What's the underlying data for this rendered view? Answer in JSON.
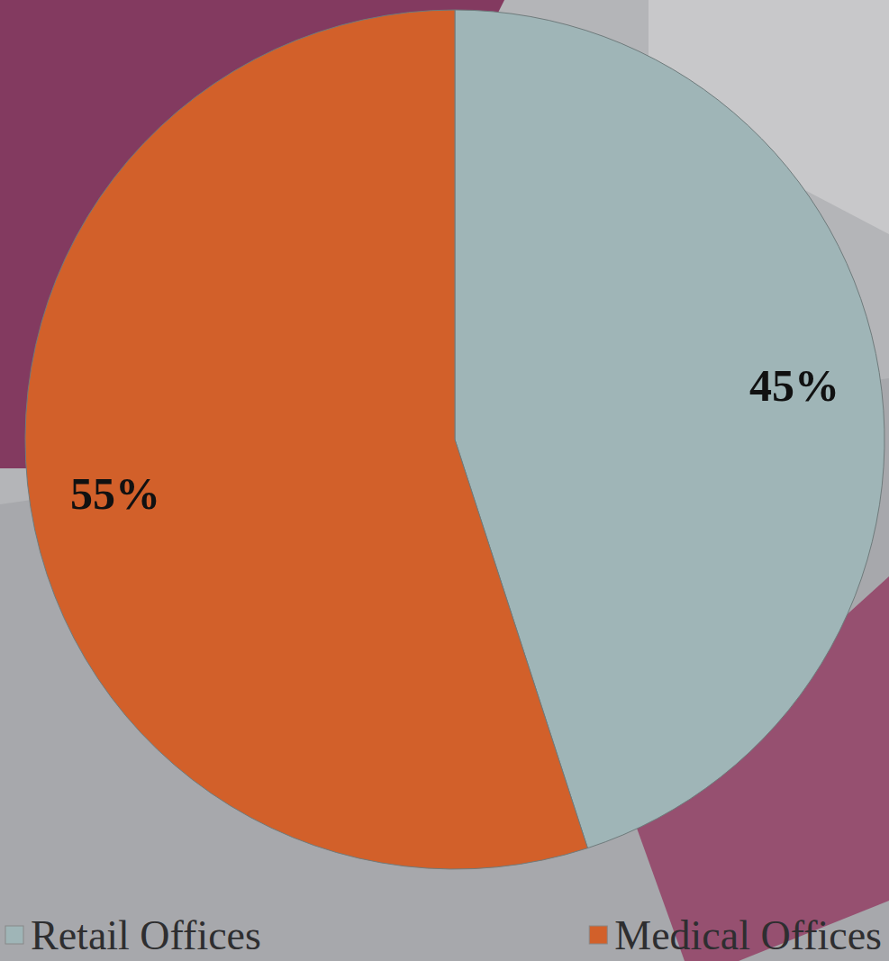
{
  "chart_data": {
    "type": "pie",
    "categories": [
      "Retail Offices",
      "Medical Offices"
    ],
    "values": [
      45,
      55
    ],
    "value_labels": [
      "45%",
      "55%"
    ],
    "colors": [
      "#9fb5b7",
      "#d2602a"
    ],
    "data_labels": true,
    "legend": "bottom"
  }
}
